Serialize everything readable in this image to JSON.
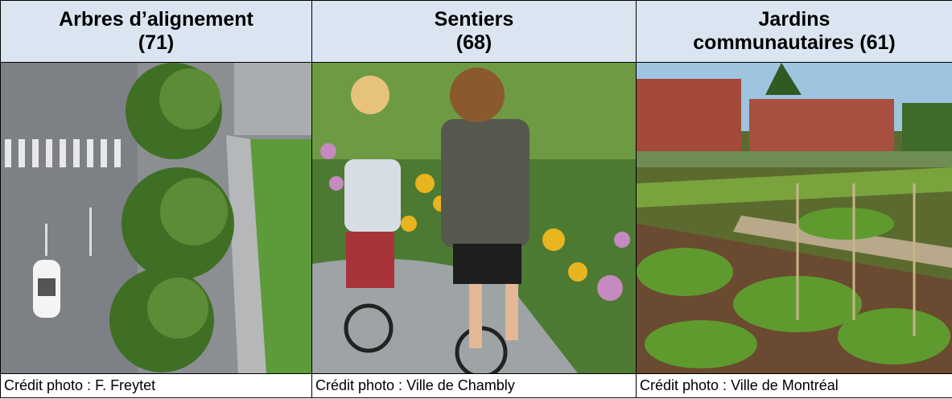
{
  "table": {
    "columns": [
      {
        "header_lines": [
          "Arbres d’alignement",
          "(71)"
        ],
        "credit": "Crédit photo : F. Freytet"
      },
      {
        "header_lines": [
          "Sentiers",
          "(68)"
        ],
        "credit": "Crédit photo : Ville de Chambly"
      },
      {
        "header_lines": [
          "Jardins",
          "communautaires (61)"
        ],
        "credit": "Crédit photo : Ville de Montréal"
      }
    ]
  }
}
